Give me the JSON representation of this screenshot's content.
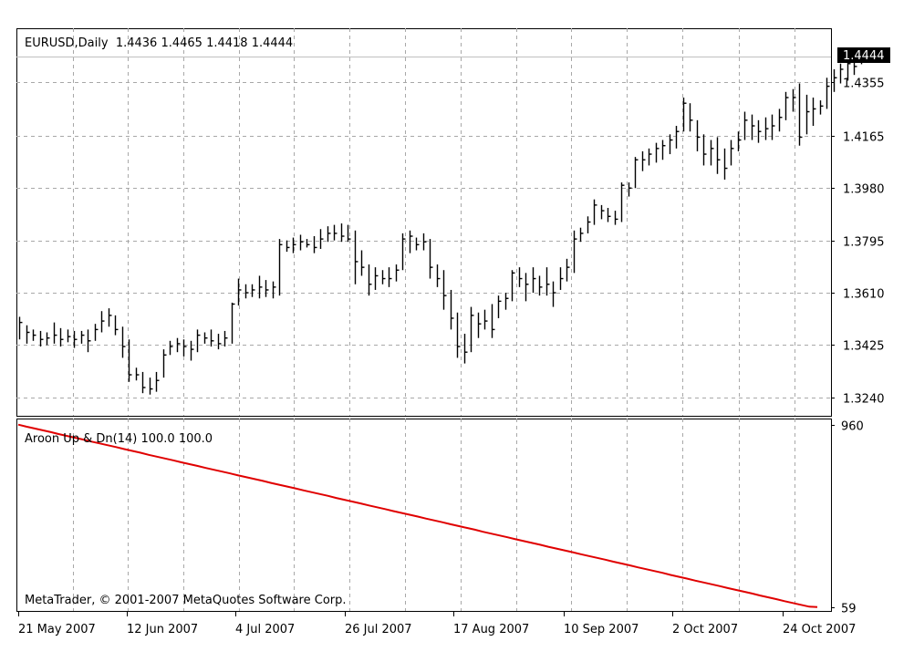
{
  "chart_data": [
    {
      "type": "ohlc",
      "title": "EURUSD,Daily  1.4436 1.4465 1.4418 1.4444",
      "current_price_label": "1.4444",
      "current_price": 1.4444,
      "ylim": [
        1.3175,
        1.4545
      ],
      "y_ticks": [
        1.324,
        1.3425,
        1.361,
        1.3795,
        1.398,
        1.4165,
        1.4355
      ],
      "y_tick_labels": [
        "1.3240",
        "1.3425",
        "1.3610",
        "1.3795",
        "1.3980",
        "1.4165",
        "1.4355"
      ],
      "grid": true,
      "bar_color": "#000000",
      "bars": [
        [
          1.3525,
          1.3445,
          1.3505
        ],
        [
          1.3495,
          1.343,
          1.347
        ],
        [
          1.348,
          1.344,
          1.346
        ],
        [
          1.3475,
          1.342,
          1.3445
        ],
        [
          1.347,
          1.3425,
          1.345
        ],
        [
          1.3505,
          1.343,
          1.346
        ],
        [
          1.3485,
          1.342,
          1.3445
        ],
        [
          1.348,
          1.3435,
          1.3455
        ],
        [
          1.3475,
          1.3415,
          1.3445
        ],
        [
          1.3475,
          1.343,
          1.346
        ],
        [
          1.348,
          1.34,
          1.344
        ],
        [
          1.35,
          1.344,
          1.348
        ],
        [
          1.3545,
          1.347,
          1.351
        ],
        [
          1.3555,
          1.349,
          1.353
        ],
        [
          1.353,
          1.346,
          1.348
        ],
        [
          1.349,
          1.338,
          1.342
        ],
        [
          1.3445,
          1.3295,
          1.332
        ],
        [
          1.3345,
          1.33,
          1.332
        ],
        [
          1.333,
          1.3255,
          1.3275
        ],
        [
          1.331,
          1.325,
          1.327
        ],
        [
          1.333,
          1.326,
          1.33
        ],
        [
          1.341,
          1.331,
          1.339
        ],
        [
          1.344,
          1.339,
          1.342
        ],
        [
          1.345,
          1.34,
          1.343
        ],
        [
          1.3445,
          1.3385,
          1.342
        ],
        [
          1.344,
          1.337,
          1.341
        ],
        [
          1.348,
          1.34,
          1.346
        ],
        [
          1.347,
          1.343,
          1.345
        ],
        [
          1.348,
          1.342,
          1.344
        ],
        [
          1.3465,
          1.341,
          1.343
        ],
        [
          1.3475,
          1.342,
          1.345
        ],
        [
          1.3575,
          1.343,
          1.357
        ],
        [
          1.366,
          1.3565,
          1.362
        ],
        [
          1.364,
          1.359,
          1.361
        ],
        [
          1.364,
          1.3595,
          1.362
        ],
        [
          1.367,
          1.359,
          1.363
        ],
        [
          1.3655,
          1.3595,
          1.362
        ],
        [
          1.365,
          1.359,
          1.363
        ],
        [
          1.38,
          1.36,
          1.378
        ],
        [
          1.3795,
          1.3755,
          1.377
        ],
        [
          1.3805,
          1.375,
          1.378
        ],
        [
          1.3815,
          1.376,
          1.379
        ],
        [
          1.38,
          1.377,
          1.378
        ],
        [
          1.381,
          1.375,
          1.377
        ],
        [
          1.3835,
          1.3765,
          1.38
        ],
        [
          1.3845,
          1.379,
          1.382
        ],
        [
          1.385,
          1.3795,
          1.382
        ],
        [
          1.3855,
          1.379,
          1.381
        ],
        [
          1.385,
          1.379,
          1.38
        ],
        [
          1.383,
          1.364,
          1.372
        ],
        [
          1.376,
          1.367,
          1.37
        ],
        [
          1.371,
          1.36,
          1.364
        ],
        [
          1.37,
          1.362,
          1.367
        ],
        [
          1.369,
          1.364,
          1.366
        ],
        [
          1.37,
          1.363,
          1.366
        ],
        [
          1.371,
          1.365,
          1.369
        ],
        [
          1.382,
          1.369,
          1.38
        ],
        [
          1.383,
          1.375,
          1.381
        ],
        [
          1.3805,
          1.376,
          1.378
        ],
        [
          1.382,
          1.376,
          1.379
        ],
        [
          1.38,
          1.366,
          1.37
        ],
        [
          1.371,
          1.363,
          1.366
        ],
        [
          1.369,
          1.355,
          1.36
        ],
        [
          1.362,
          1.348,
          1.352
        ],
        [
          1.354,
          1.338,
          1.342
        ],
        [
          1.3465,
          1.336,
          1.34
        ],
        [
          1.356,
          1.34,
          1.353
        ],
        [
          1.354,
          1.345,
          1.35
        ],
        [
          1.355,
          1.348,
          1.351
        ],
        [
          1.357,
          1.345,
          1.348
        ],
        [
          1.36,
          1.352,
          1.358
        ],
        [
          1.361,
          1.355,
          1.359
        ],
        [
          1.369,
          1.358,
          1.368
        ],
        [
          1.37,
          1.363,
          1.366
        ],
        [
          1.368,
          1.358,
          1.364
        ],
        [
          1.37,
          1.361,
          1.366
        ],
        [
          1.367,
          1.36,
          1.363
        ],
        [
          1.37,
          1.36,
          1.364
        ],
        [
          1.365,
          1.356,
          1.361
        ],
        [
          1.37,
          1.362,
          1.366
        ],
        [
          1.373,
          1.365,
          1.37
        ],
        [
          1.383,
          1.368,
          1.38
        ],
        [
          1.384,
          1.379,
          1.382
        ],
        [
          1.388,
          1.382,
          1.386
        ],
        [
          1.394,
          1.385,
          1.392
        ],
        [
          1.392,
          1.387,
          1.39
        ],
        [
          1.391,
          1.386,
          1.388
        ],
        [
          1.39,
          1.385,
          1.387
        ],
        [
          1.4,
          1.386,
          1.399
        ],
        [
          1.4,
          1.395,
          1.398
        ],
        [
          1.409,
          1.398,
          1.408
        ],
        [
          1.411,
          1.404,
          1.408
        ],
        [
          1.412,
          1.406,
          1.41
        ],
        [
          1.414,
          1.407,
          1.412
        ],
        [
          1.415,
          1.408,
          1.413
        ],
        [
          1.417,
          1.41,
          1.415
        ],
        [
          1.42,
          1.412,
          1.418
        ],
        [
          1.43,
          1.418,
          1.428
        ],
        [
          1.428,
          1.418,
          1.422
        ],
        [
          1.422,
          1.411,
          1.416
        ],
        [
          1.417,
          1.406,
          1.41
        ],
        [
          1.415,
          1.406,
          1.412
        ],
        [
          1.416,
          1.403,
          1.408
        ],
        [
          1.412,
          1.401,
          1.405
        ],
        [
          1.415,
          1.406,
          1.412
        ],
        [
          1.418,
          1.411,
          1.415
        ],
        [
          1.425,
          1.415,
          1.422
        ],
        [
          1.424,
          1.415,
          1.42
        ],
        [
          1.422,
          1.414,
          1.418
        ],
        [
          1.423,
          1.415,
          1.419
        ],
        [
          1.424,
          1.415,
          1.42
        ],
        [
          1.426,
          1.418,
          1.423
        ],
        [
          1.432,
          1.422,
          1.43
        ],
        [
          1.433,
          1.425,
          1.43
        ],
        [
          1.435,
          1.413,
          1.416
        ],
        [
          1.431,
          1.417,
          1.425
        ],
        [
          1.43,
          1.42,
          1.426
        ],
        [
          1.429,
          1.424,
          1.427
        ],
        [
          1.437,
          1.426,
          1.434
        ],
        [
          1.44,
          1.432,
          1.437
        ],
        [
          1.442,
          1.435,
          1.44
        ],
        [
          1.444,
          1.436,
          1.442
        ],
        [
          1.443,
          1.438,
          1.441
        ],
        [
          1.4465,
          1.4418,
          1.4444
        ]
      ],
      "x_tick_labels": [
        "21 May 2007",
        "12 Jun 2007",
        "4 Jul 2007",
        "26 Jul 2007",
        "17 Aug 2007",
        "10 Sep 2007",
        "2 Oct 2007",
        "24 Oct 2007"
      ],
      "x_tick_bar_index": [
        0,
        16,
        32,
        48,
        64,
        80,
        96,
        112
      ]
    },
    {
      "type": "line",
      "title": "Aroon Up & Dn(14) 100.0 100.0",
      "line_color": "#e00000",
      "ylim": [
        40,
        990
      ],
      "y_ticks": [
        960,
        59
      ],
      "y_tick_labels": [
        "960",
        "59"
      ],
      "y_start": 960,
      "y_end": 59,
      "values": [
        960,
        950,
        941,
        932,
        923,
        913,
        904,
        895,
        886,
        876,
        867,
        858,
        849,
        839,
        830,
        821,
        811,
        802,
        793,
        784,
        774,
        765,
        756,
        746,
        737,
        728,
        719,
        709,
        700,
        691,
        682,
        672,
        663,
        654,
        645,
        635,
        626,
        617,
        608,
        598,
        589,
        580,
        571,
        561,
        552,
        543,
        533,
        524,
        515,
        506,
        496,
        487,
        478,
        468,
        459,
        450,
        441,
        431,
        422,
        413,
        404,
        394,
        385,
        376,
        367,
        357,
        348,
        339,
        330,
        320,
        311,
        302,
        293,
        283,
        274,
        265,
        255,
        246,
        237,
        228,
        218,
        209,
        200,
        190,
        181,
        172,
        163,
        153,
        144,
        135,
        126,
        116,
        107,
        98,
        88,
        79,
        70,
        61,
        59
      ],
      "grid": true
    }
  ],
  "footer": {
    "copyright": "MetaTrader, © 2001-2007 MetaQuotes Software Corp."
  }
}
